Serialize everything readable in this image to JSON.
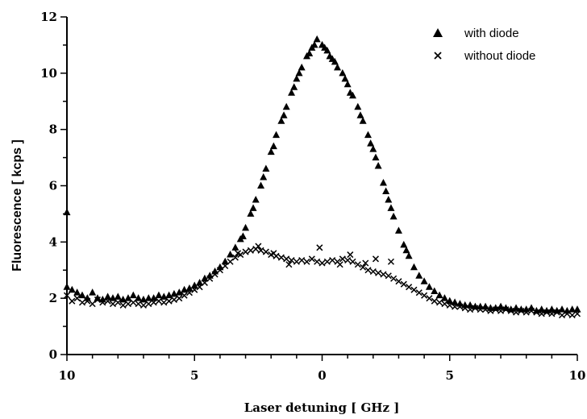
{
  "chart_data": {
    "type": "scatter",
    "xlabel": "Laser detuning  [ GHz ]",
    "ylabel": "Fluorescence  [ kcps ]",
    "ylim": [
      0,
      12
    ],
    "xlim": [
      -10,
      10
    ],
    "x_ticks": [
      {
        "value": -10,
        "label": "10"
      },
      {
        "value": -5,
        "label": "5"
      },
      {
        "value": 0,
        "label": "0"
      },
      {
        "value": 5,
        "label": "5"
      },
      {
        "value": 10,
        "label": "10"
      }
    ],
    "y_ticks": [
      {
        "value": 0,
        "label": "0"
      },
      {
        "value": 2,
        "label": "2"
      },
      {
        "value": 4,
        "label": "4"
      },
      {
        "value": 6,
        "label": "6"
      },
      {
        "value": 8,
        "label": "8"
      },
      {
        "value": 10,
        "label": "10"
      },
      {
        "value": 12,
        "label": "12"
      }
    ],
    "grid": false,
    "legend_position": "top-right",
    "series": [
      {
        "name": "with diode",
        "marker": "triangle",
        "color": "#000000",
        "points": [
          [
            -10,
            5.05
          ],
          [
            -10,
            2.4
          ],
          [
            -9.8,
            2.3
          ],
          [
            -9.6,
            2.2
          ],
          [
            -9.4,
            2.1
          ],
          [
            -9.2,
            2.0
          ],
          [
            -9.0,
            2.2
          ],
          [
            -8.8,
            2.0
          ],
          [
            -8.6,
            1.95
          ],
          [
            -8.4,
            2.05
          ],
          [
            -8.2,
            2.0
          ],
          [
            -8.0,
            2.05
          ],
          [
            -7.8,
            1.95
          ],
          [
            -7.6,
            2.0
          ],
          [
            -7.4,
            2.1
          ],
          [
            -7.2,
            2.0
          ],
          [
            -7.0,
            1.95
          ],
          [
            -6.8,
            2.0
          ],
          [
            -6.6,
            2.0
          ],
          [
            -6.4,
            2.1
          ],
          [
            -6.2,
            2.05
          ],
          [
            -6.0,
            2.1
          ],
          [
            -5.8,
            2.15
          ],
          [
            -5.6,
            2.2
          ],
          [
            -5.4,
            2.3
          ],
          [
            -5.2,
            2.35
          ],
          [
            -5.0,
            2.45
          ],
          [
            -4.8,
            2.55
          ],
          [
            -4.6,
            2.7
          ],
          [
            -4.4,
            2.8
          ],
          [
            -4.2,
            2.95
          ],
          [
            -4.0,
            3.1
          ],
          [
            -3.8,
            3.3
          ],
          [
            -3.6,
            3.55
          ],
          [
            -3.4,
            3.8
          ],
          [
            -3.2,
            4.1
          ],
          [
            -3.0,
            4.5
          ],
          [
            -2.8,
            5.0
          ],
          [
            -2.6,
            5.5
          ],
          [
            -2.4,
            6.0
          ],
          [
            -2.2,
            6.6
          ],
          [
            -2.0,
            7.2
          ],
          [
            -1.8,
            7.8
          ],
          [
            -1.6,
            8.3
          ],
          [
            -1.4,
            8.8
          ],
          [
            -1.2,
            9.3
          ],
          [
            -1.0,
            9.8
          ],
          [
            -0.8,
            10.2
          ],
          [
            -0.6,
            10.6
          ],
          [
            -0.4,
            10.9
          ],
          [
            -0.2,
            11.2
          ],
          [
            0.0,
            11.0
          ],
          [
            0.2,
            10.8
          ],
          [
            0.4,
            10.5
          ],
          [
            0.6,
            10.2
          ],
          [
            0.8,
            10.0
          ],
          [
            1.0,
            9.6
          ],
          [
            1.2,
            9.2
          ],
          [
            1.4,
            8.8
          ],
          [
            1.6,
            8.3
          ],
          [
            1.8,
            7.8
          ],
          [
            2.0,
            7.3
          ],
          [
            2.2,
            6.7
          ],
          [
            2.4,
            6.1
          ],
          [
            2.6,
            5.5
          ],
          [
            2.8,
            4.9
          ],
          [
            3.0,
            4.4
          ],
          [
            3.2,
            3.9
          ],
          [
            3.4,
            3.5
          ],
          [
            3.6,
            3.1
          ],
          [
            3.8,
            2.8
          ],
          [
            4.0,
            2.6
          ],
          [
            4.2,
            2.4
          ],
          [
            4.4,
            2.25
          ],
          [
            4.6,
            2.1
          ],
          [
            4.8,
            2.0
          ],
          [
            5.0,
            1.9
          ],
          [
            5.2,
            1.85
          ],
          [
            5.4,
            1.8
          ],
          [
            5.6,
            1.75
          ],
          [
            5.8,
            1.75
          ],
          [
            6.0,
            1.7
          ],
          [
            6.2,
            1.7
          ],
          [
            6.4,
            1.7
          ],
          [
            6.6,
            1.65
          ],
          [
            6.8,
            1.65
          ],
          [
            7.0,
            1.7
          ],
          [
            7.2,
            1.65
          ],
          [
            7.4,
            1.6
          ],
          [
            7.6,
            1.65
          ],
          [
            7.8,
            1.6
          ],
          [
            8.0,
            1.6
          ],
          [
            8.2,
            1.65
          ],
          [
            8.4,
            1.55
          ],
          [
            8.6,
            1.6
          ],
          [
            8.8,
            1.55
          ],
          [
            9.0,
            1.6
          ],
          [
            9.2,
            1.55
          ],
          [
            9.4,
            1.6
          ],
          [
            9.6,
            1.55
          ],
          [
            9.8,
            1.6
          ],
          [
            10.0,
            1.6
          ],
          [
            -1.9,
            7.4
          ],
          [
            -1.1,
            9.5
          ],
          [
            -0.5,
            10.7
          ],
          [
            0.1,
            10.9
          ],
          [
            0.5,
            10.4
          ],
          [
            1.1,
            9.3
          ],
          [
            1.9,
            7.5
          ],
          [
            2.5,
            5.8
          ],
          [
            3.3,
            3.7
          ],
          [
            -2.7,
            5.2
          ],
          [
            -3.1,
            4.2
          ],
          [
            -0.3,
            11.0
          ],
          [
            0.3,
            10.6
          ],
          [
            0.9,
            9.8
          ],
          [
            -0.9,
            10.0
          ],
          [
            -1.5,
            8.5
          ],
          [
            1.5,
            8.5
          ],
          [
            2.1,
            7.0
          ],
          [
            -2.3,
            6.3
          ],
          [
            2.7,
            5.2
          ]
        ]
      },
      {
        "name": "without diode",
        "marker": "cross",
        "color": "#000000",
        "points": [
          [
            -10,
            2.1
          ],
          [
            -9.8,
            1.9
          ],
          [
            -9.6,
            2.0
          ],
          [
            -9.4,
            1.85
          ],
          [
            -9.2,
            1.9
          ],
          [
            -9.0,
            1.8
          ],
          [
            -8.8,
            1.95
          ],
          [
            -8.6,
            1.85
          ],
          [
            -8.4,
            1.9
          ],
          [
            -8.2,
            1.8
          ],
          [
            -8.0,
            1.85
          ],
          [
            -7.8,
            1.75
          ],
          [
            -7.6,
            1.8
          ],
          [
            -7.4,
            1.85
          ],
          [
            -7.2,
            1.8
          ],
          [
            -7.0,
            1.75
          ],
          [
            -6.8,
            1.8
          ],
          [
            -6.6,
            1.85
          ],
          [
            -6.4,
            1.9
          ],
          [
            -6.2,
            1.85
          ],
          [
            -6.0,
            1.9
          ],
          [
            -5.8,
            1.95
          ],
          [
            -5.6,
            2.0
          ],
          [
            -5.4,
            2.1
          ],
          [
            -5.2,
            2.2
          ],
          [
            -5.0,
            2.3
          ],
          [
            -4.8,
            2.4
          ],
          [
            -4.6,
            2.55
          ],
          [
            -4.4,
            2.7
          ],
          [
            -4.2,
            2.85
          ],
          [
            -4.0,
            3.0
          ],
          [
            -3.8,
            3.15
          ],
          [
            -3.6,
            3.3
          ],
          [
            -3.4,
            3.45
          ],
          [
            -3.2,
            3.55
          ],
          [
            -3.0,
            3.65
          ],
          [
            -2.8,
            3.7
          ],
          [
            -2.6,
            3.75
          ],
          [
            -2.4,
            3.7
          ],
          [
            -2.2,
            3.65
          ],
          [
            -2.0,
            3.55
          ],
          [
            -1.8,
            3.5
          ],
          [
            -1.6,
            3.45
          ],
          [
            -1.4,
            3.4
          ],
          [
            -1.2,
            3.35
          ],
          [
            -1.0,
            3.3
          ],
          [
            -0.8,
            3.35
          ],
          [
            -0.6,
            3.3
          ],
          [
            -0.4,
            3.4
          ],
          [
            -0.2,
            3.3
          ],
          [
            0.0,
            3.25
          ],
          [
            0.2,
            3.3
          ],
          [
            0.4,
            3.35
          ],
          [
            0.6,
            3.3
          ],
          [
            0.8,
            3.4
          ],
          [
            1.0,
            3.35
          ],
          [
            1.2,
            3.3
          ],
          [
            1.4,
            3.2
          ],
          [
            1.6,
            3.1
          ],
          [
            1.8,
            3.0
          ],
          [
            2.0,
            2.95
          ],
          [
            2.2,
            2.9
          ],
          [
            2.4,
            2.85
          ],
          [
            2.6,
            2.8
          ],
          [
            2.8,
            2.7
          ],
          [
            3.0,
            2.6
          ],
          [
            3.2,
            2.5
          ],
          [
            3.4,
            2.4
          ],
          [
            3.6,
            2.3
          ],
          [
            3.8,
            2.2
          ],
          [
            4.0,
            2.1
          ],
          [
            4.2,
            2.0
          ],
          [
            4.4,
            1.9
          ],
          [
            4.6,
            1.85
          ],
          [
            4.8,
            1.8
          ],
          [
            5.0,
            1.75
          ],
          [
            5.2,
            1.7
          ],
          [
            5.4,
            1.7
          ],
          [
            5.6,
            1.65
          ],
          [
            5.8,
            1.6
          ],
          [
            6.0,
            1.65
          ],
          [
            6.2,
            1.6
          ],
          [
            6.4,
            1.6
          ],
          [
            6.6,
            1.55
          ],
          [
            6.8,
            1.6
          ],
          [
            7.0,
            1.55
          ],
          [
            7.2,
            1.6
          ],
          [
            7.4,
            1.55
          ],
          [
            7.6,
            1.5
          ],
          [
            7.8,
            1.55
          ],
          [
            8.0,
            1.5
          ],
          [
            8.2,
            1.55
          ],
          [
            8.4,
            1.5
          ],
          [
            8.6,
            1.45
          ],
          [
            8.8,
            1.5
          ],
          [
            9.0,
            1.45
          ],
          [
            9.2,
            1.5
          ],
          [
            9.4,
            1.4
          ],
          [
            9.6,
            1.45
          ],
          [
            9.8,
            1.4
          ],
          [
            10.0,
            1.45
          ],
          [
            -2.5,
            3.85
          ],
          [
            -1.9,
            3.6
          ],
          [
            -0.1,
            3.8
          ],
          [
            1.1,
            3.55
          ],
          [
            2.1,
            3.4
          ],
          [
            2.7,
            3.3
          ],
          [
            -3.3,
            3.6
          ],
          [
            0.7,
            3.2
          ],
          [
            -1.3,
            3.2
          ],
          [
            1.7,
            3.25
          ]
        ]
      }
    ]
  }
}
